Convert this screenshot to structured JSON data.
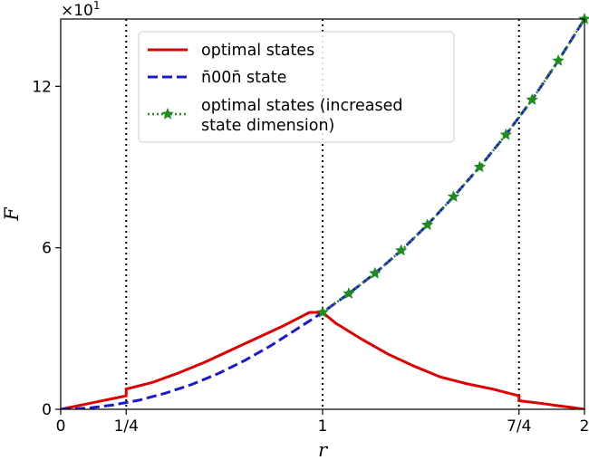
{
  "chart_data": {
    "type": "line",
    "title": "",
    "xlabel": "r",
    "ylabel": "F",
    "xlim": [
      0,
      2
    ],
    "ylim": [
      0,
      14.5
    ],
    "scale_label": "×10",
    "scale_label_exp": "1",
    "grid": false,
    "legend_position": "top-left",
    "x_ticks": [
      {
        "value": 0,
        "label": "0"
      },
      {
        "value": 0.25,
        "label": "1/4"
      },
      {
        "value": 1,
        "label": "1"
      },
      {
        "value": 1.75,
        "label": "7/4"
      },
      {
        "value": 2,
        "label": "2"
      }
    ],
    "y_ticks": [
      {
        "value": 0,
        "label": "0"
      },
      {
        "value": 6,
        "label": "6"
      },
      {
        "value": 12,
        "label": "12"
      }
    ],
    "vlines": [
      0.25,
      1,
      1.75
    ],
    "series": [
      {
        "name": "optimal states",
        "color": "#dd0000",
        "style": "solid",
        "x": [
          0,
          0.05,
          0.1,
          0.15,
          0.2,
          0.25,
          0.25,
          0.35,
          0.45,
          0.55,
          0.65,
          0.75,
          0.85,
          0.95,
          1.0,
          1.05,
          1.15,
          1.25,
          1.35,
          1.45,
          1.55,
          1.65,
          1.75,
          1.75,
          1.8,
          1.85,
          1.9,
          1.95,
          2.0
        ],
        "values": [
          0,
          0.1,
          0.2,
          0.3,
          0.4,
          0.5,
          0.75,
          1.0,
          1.35,
          1.75,
          2.2,
          2.65,
          3.1,
          3.6,
          3.6,
          3.2,
          2.6,
          2.05,
          1.6,
          1.2,
          0.95,
          0.75,
          0.5,
          0.32,
          0.26,
          0.2,
          0.13,
          0.07,
          0
        ]
      },
      {
        "name": "n̄00n̄ state",
        "color": "#1a1acc",
        "style": "dashed",
        "x": [
          0,
          0.1,
          0.2,
          0.3,
          0.4,
          0.5,
          0.6,
          0.7,
          0.8,
          0.9,
          1.0,
          1.1,
          1.2,
          1.3,
          1.4,
          1.5,
          1.6,
          1.7,
          1.8,
          1.9,
          2.0
        ],
        "values": [
          0,
          0.04,
          0.16,
          0.34,
          0.6,
          0.92,
          1.32,
          1.8,
          2.35,
          2.97,
          3.6,
          4.3,
          5.05,
          5.9,
          6.85,
          7.9,
          9.0,
          10.2,
          11.5,
          12.95,
          14.5
        ]
      },
      {
        "name": "optimal states (increased state dimension)",
        "color": "#1e8c1e",
        "style": "dotted-star",
        "x": [
          1.0,
          1.1,
          1.2,
          1.3,
          1.4,
          1.5,
          1.6,
          1.7,
          1.8,
          1.9,
          2.0
        ],
        "values": [
          3.6,
          4.3,
          5.05,
          5.9,
          6.85,
          7.9,
          9.0,
          10.2,
          11.5,
          12.95,
          14.5
        ]
      }
    ]
  }
}
